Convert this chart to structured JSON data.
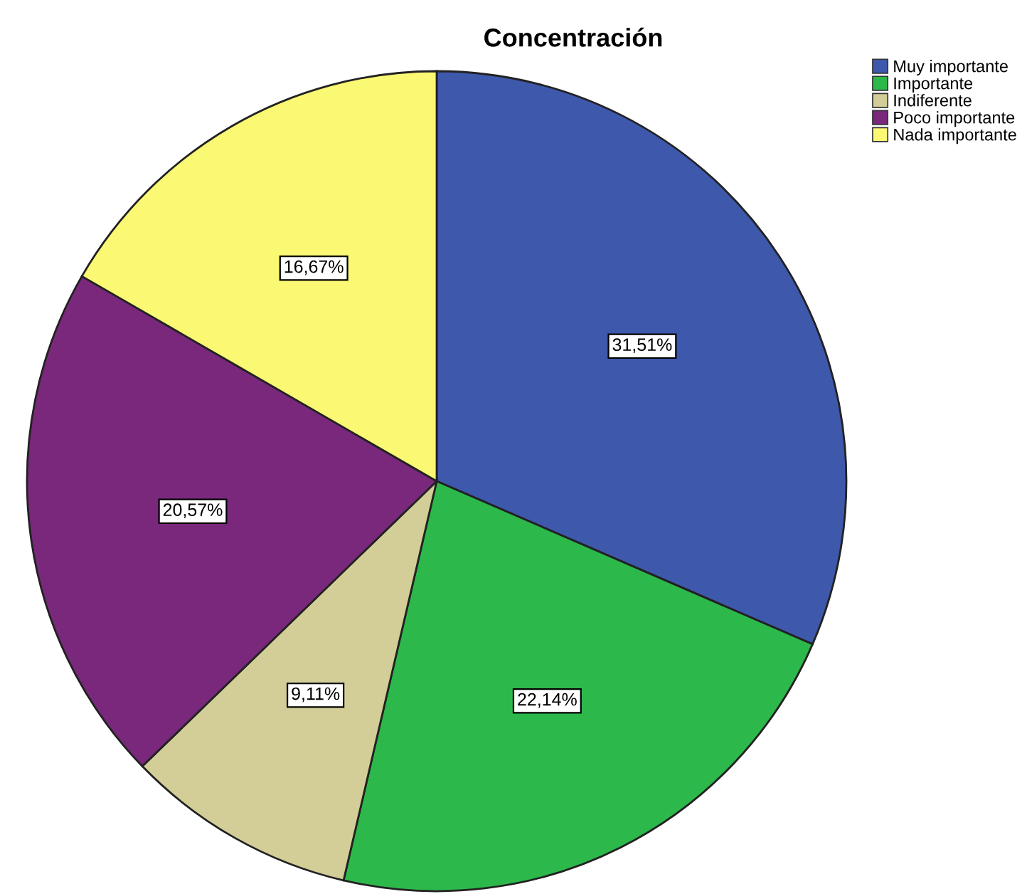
{
  "chart_data": {
    "type": "pie",
    "title": "Concentración",
    "categories": [
      "Muy importante",
      "Importante",
      "Indiferente",
      "Poco importante",
      "Nada importante"
    ],
    "values": [
      31.51,
      22.14,
      9.11,
      20.57,
      16.67
    ],
    "value_labels": [
      "31,51%",
      "22,14%",
      "9,11%",
      "20,57%",
      "16,67%"
    ],
    "colors": [
      "#3e58ac",
      "#2db84b",
      "#d3ce97",
      "#79287c",
      "#fbf873"
    ],
    "legend": "top right"
  }
}
